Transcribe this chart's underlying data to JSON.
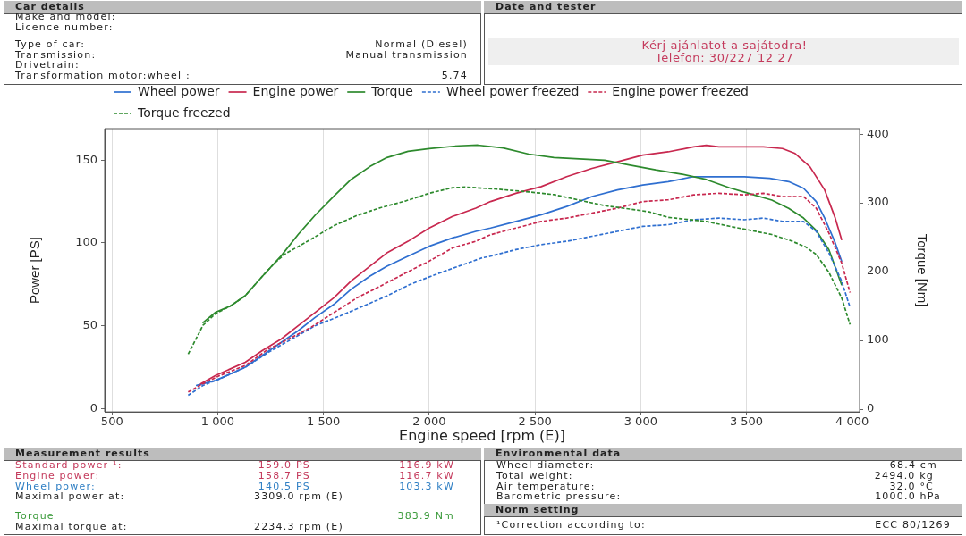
{
  "chart_data": {
    "type": "line",
    "xlabel": "Engine speed [rpm (E)]",
    "ylabel": "Power [PS]",
    "y2label": "Torque [Nm]",
    "xlim": [
      465,
      4035
    ],
    "xticks": [
      500,
      {
        "value": 1000,
        "label": "1 000"
      },
      {
        "value": 1500,
        "label": "1 500"
      },
      {
        "value": 2000,
        "label": "2 000"
      },
      {
        "value": 2500,
        "label": "2 500"
      },
      {
        "value": 3000,
        "label": "3 000"
      },
      {
        "value": 3500,
        "label": "3 500"
      },
      {
        "value": 4000,
        "label": "4 000"
      }
    ],
    "ylim": [
      -2,
      169
    ],
    "yticks": [
      0,
      50,
      100,
      150
    ],
    "y2lim": [
      -4,
      408
    ],
    "y2ticks": [
      0,
      100,
      200,
      300,
      400
    ],
    "grid": "x",
    "legend": "top left",
    "marker": "none",
    "series": [
      {
        "name": "Wheel power",
        "color": "#2f6fd0",
        "line_style": "solid",
        "x": [
          900,
          990,
          1060,
          1130,
          1210,
          1300,
          1380,
          1460,
          1550,
          1630,
          1720,
          1800,
          1900,
          2000,
          2110,
          2220,
          2290,
          2410,
          2530,
          2650,
          2770,
          2890,
          3010,
          3130,
          3250,
          3310,
          3400,
          3490,
          3610,
          3700,
          3770,
          3830,
          3870,
          3920,
          3950
        ],
        "values": [
          14,
          17,
          21,
          25,
          32,
          40,
          47,
          55,
          63,
          72,
          80,
          86,
          92,
          98,
          103,
          107,
          109,
          113,
          117,
          122,
          128,
          132,
          135,
          137,
          140,
          140,
          140,
          140,
          139,
          137,
          133,
          125,
          115,
          100,
          89
        ]
      },
      {
        "name": "Engine power",
        "color": "#c8284f",
        "line_style": "solid",
        "x": [
          920,
          990,
          1060,
          1130,
          1210,
          1300,
          1380,
          1460,
          1550,
          1630,
          1720,
          1800,
          1900,
          2000,
          2110,
          2220,
          2290,
          2410,
          2530,
          2650,
          2770,
          2890,
          3010,
          3130,
          3250,
          3310,
          3370,
          3460,
          3580,
          3670,
          3730,
          3800,
          3870,
          3920,
          3950
        ],
        "values": [
          15,
          20,
          24,
          28,
          35,
          42,
          50,
          58,
          67,
          77,
          86,
          94,
          101,
          109,
          116,
          121,
          125,
          130,
          134,
          140,
          145,
          149,
          153,
          155,
          158,
          159,
          158,
          158,
          158,
          157,
          154,
          146,
          132,
          115,
          102
        ]
      },
      {
        "name": "Torque",
        "color": "#2d8a2d",
        "line_style": "solid",
        "axis": "y2",
        "x": [
          930,
          990,
          1060,
          1130,
          1210,
          1300,
          1380,
          1460,
          1550,
          1630,
          1720,
          1800,
          1900,
          2000,
          2140,
          2230,
          2350,
          2470,
          2590,
          2710,
          2830,
          2950,
          3070,
          3190,
          3310,
          3420,
          3520,
          3620,
          3700,
          3770,
          3830,
          3890,
          3950
        ],
        "values": [
          126,
          141,
          150,
          165,
          193,
          223,
          254,
          282,
          310,
          334,
          353,
          366,
          375,
          379,
          383,
          384,
          380,
          371,
          366,
          364,
          362,
          355,
          348,
          342,
          334,
          322,
          313,
          304,
          292,
          278,
          260,
          232,
          181
        ]
      },
      {
        "name": "Wheel power freezed",
        "color": "#2f6fd0",
        "line_style": "dashed",
        "x": [
          860,
          930,
          1010,
          1130,
          1240,
          1350,
          1460,
          1580,
          1690,
          1800,
          1910,
          2030,
          2140,
          2250,
          2290,
          2410,
          2530,
          2650,
          2770,
          2890,
          3010,
          3130,
          3250,
          3370,
          3490,
          3580,
          3670,
          3770,
          3830,
          3890,
          3950,
          3990
        ],
        "values": [
          8,
          14,
          18,
          25,
          34,
          42,
          50,
          56,
          62,
          68,
          75,
          81,
          86,
          91,
          92,
          96,
          99,
          101,
          104,
          107,
          110,
          111,
          114,
          115,
          114,
          115,
          113,
          113,
          107,
          94,
          77,
          61
        ]
      },
      {
        "name": "Engine power freezed",
        "color": "#c8284f",
        "line_style": "dashed",
        "x": [
          860,
          930,
          1010,
          1130,
          1240,
          1320,
          1440,
          1550,
          1660,
          1770,
          1890,
          2000,
          2110,
          2220,
          2290,
          2410,
          2530,
          2650,
          2770,
          2890,
          3010,
          3130,
          3250,
          3370,
          3490,
          3580,
          3670,
          3770,
          3830,
          3890,
          3950,
          3990
        ],
        "values": [
          10,
          15,
          20,
          26,
          36,
          41,
          49,
          58,
          67,
          74,
          82,
          89,
          97,
          101,
          105,
          109,
          113,
          115,
          118,
          121,
          125,
          126,
          129,
          130,
          129,
          130,
          128,
          128,
          121,
          106,
          88,
          70
        ]
      },
      {
        "name": "Torque freezed",
        "color": "#2d8a2d",
        "line_style": "dashed",
        "axis": "y2",
        "x": [
          860,
          900,
          930,
          990,
          1060,
          1130,
          1210,
          1270,
          1320,
          1440,
          1550,
          1660,
          1770,
          1890,
          2000,
          2110,
          2170,
          2320,
          2470,
          2590,
          2710,
          2830,
          2950,
          3040,
          3130,
          3220,
          3310,
          3420,
          3520,
          3620,
          3710,
          3780,
          3830,
          3890,
          3950,
          3990
        ],
        "values": [
          80,
          104,
          122,
          139,
          150,
          165,
          193,
          213,
          226,
          247,
          267,
          282,
          293,
          303,
          314,
          322,
          323,
          320,
          316,
          312,
          304,
          296,
          291,
          287,
          279,
          276,
          273,
          266,
          260,
          254,
          245,
          236,
          225,
          199,
          162,
          123
        ]
      }
    ],
    "annotations": [
      "Car details",
      "Make and model:",
      "Licence number:",
      "Type of car:",
      "Normal (Diesel)",
      "Transmission:",
      "Manual transmission",
      "Drivetrain:",
      "Transformation motor:wheel :",
      "5.74",
      "Date and tester",
      "Kérj ajánlatot a sajátodra!",
      "Telefon: 30/227 12 27",
      "Measurement results",
      "Standard power ¹:",
      "159.0 PS",
      "116.9 kW",
      "Engine power:",
      "158.7 PS",
      "116.7 kW",
      "Wheel power:",
      "140.5 PS",
      "103.3 kW",
      "Maximal power at:",
      "3309.0 rpm (E)",
      "Torque",
      "383.9 Nm",
      "Maximal torque at:",
      "2234.3 rpm (E)",
      "Environmental data",
      "Wheel diameter:",
      "68.4 cm",
      "Total weight:",
      "2494.0 kg",
      "Air temperature:",
      "32.0 °C",
      "Barometric pressure:",
      "1000.0 hPa",
      "Norm setting",
      "¹Correction according to:",
      "ECC 80/1269"
    ]
  }
}
